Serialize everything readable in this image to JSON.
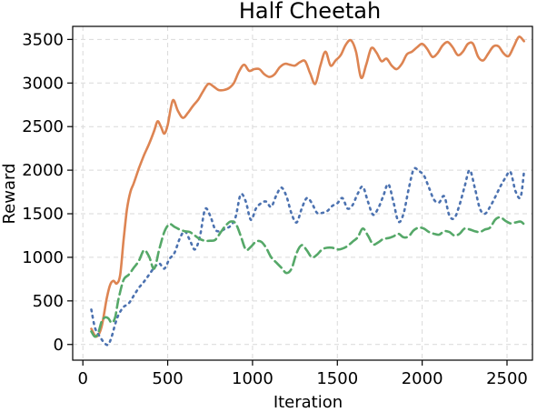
{
  "chart_data": {
    "type": "line",
    "title": "Half Cheetah",
    "xlabel": "Iteration",
    "ylabel": "Reward",
    "xlim": [
      -60,
      2650
    ],
    "ylim": [
      -180,
      3650
    ],
    "xticks": [
      0,
      500,
      1000,
      1500,
      2000,
      2500
    ],
    "yticks": [
      0,
      500,
      1000,
      1500,
      2000,
      2500,
      3000,
      3500
    ],
    "grid": true,
    "series": [
      {
        "color": "#dd8452",
        "style": "solid",
        "points": [
          [
            50,
            180
          ],
          [
            80,
            90
          ],
          [
            110,
            200
          ],
          [
            140,
            520
          ],
          [
            160,
            680
          ],
          [
            180,
            730
          ],
          [
            200,
            700
          ],
          [
            220,
            800
          ],
          [
            240,
            1200
          ],
          [
            260,
            1550
          ],
          [
            280,
            1750
          ],
          [
            300,
            1850
          ],
          [
            330,
            2020
          ],
          [
            360,
            2170
          ],
          [
            390,
            2300
          ],
          [
            420,
            2450
          ],
          [
            440,
            2560
          ],
          [
            460,
            2500
          ],
          [
            480,
            2420
          ],
          [
            500,
            2520
          ],
          [
            530,
            2800
          ],
          [
            560,
            2680
          ],
          [
            590,
            2600
          ],
          [
            620,
            2660
          ],
          [
            650,
            2740
          ],
          [
            680,
            2810
          ],
          [
            710,
            2910
          ],
          [
            740,
            2990
          ],
          [
            770,
            2960
          ],
          [
            800,
            2920
          ],
          [
            830,
            2920
          ],
          [
            860,
            2940
          ],
          [
            890,
            3000
          ],
          [
            920,
            3130
          ],
          [
            950,
            3210
          ],
          [
            980,
            3140
          ],
          [
            1010,
            3160
          ],
          [
            1040,
            3160
          ],
          [
            1070,
            3100
          ],
          [
            1100,
            3070
          ],
          [
            1130,
            3100
          ],
          [
            1160,
            3180
          ],
          [
            1190,
            3220
          ],
          [
            1220,
            3210
          ],
          [
            1250,
            3200
          ],
          [
            1280,
            3240
          ],
          [
            1310,
            3250
          ],
          [
            1340,
            3110
          ],
          [
            1370,
            2990
          ],
          [
            1400,
            3200
          ],
          [
            1430,
            3360
          ],
          [
            1460,
            3200
          ],
          [
            1490,
            3260
          ],
          [
            1520,
            3320
          ],
          [
            1550,
            3440
          ],
          [
            1580,
            3490
          ],
          [
            1610,
            3360
          ],
          [
            1640,
            3060
          ],
          [
            1670,
            3210
          ],
          [
            1700,
            3400
          ],
          [
            1730,
            3350
          ],
          [
            1760,
            3250
          ],
          [
            1790,
            3280
          ],
          [
            1820,
            3200
          ],
          [
            1850,
            3160
          ],
          [
            1880,
            3220
          ],
          [
            1910,
            3330
          ],
          [
            1940,
            3360
          ],
          [
            1970,
            3410
          ],
          [
            2000,
            3450
          ],
          [
            2030,
            3390
          ],
          [
            2060,
            3300
          ],
          [
            2090,
            3340
          ],
          [
            2120,
            3430
          ],
          [
            2150,
            3470
          ],
          [
            2180,
            3410
          ],
          [
            2210,
            3320
          ],
          [
            2240,
            3360
          ],
          [
            2270,
            3450
          ],
          [
            2300,
            3450
          ],
          [
            2330,
            3300
          ],
          [
            2360,
            3260
          ],
          [
            2390,
            3340
          ],
          [
            2420,
            3420
          ],
          [
            2450,
            3420
          ],
          [
            2480,
            3340
          ],
          [
            2510,
            3310
          ],
          [
            2540,
            3420
          ],
          [
            2570,
            3530
          ],
          [
            2600,
            3480
          ]
        ]
      },
      {
        "color": "#4c72b0",
        "style": "dotted",
        "points": [
          [
            50,
            400
          ],
          [
            70,
            200
          ],
          [
            90,
            120
          ],
          [
            110,
            60
          ],
          [
            130,
            10
          ],
          [
            150,
            0
          ],
          [
            170,
            90
          ],
          [
            190,
            230
          ],
          [
            210,
            340
          ],
          [
            240,
            430
          ],
          [
            270,
            470
          ],
          [
            300,
            560
          ],
          [
            330,
            650
          ],
          [
            360,
            720
          ],
          [
            390,
            800
          ],
          [
            420,
            880
          ],
          [
            450,
            930
          ],
          [
            480,
            870
          ],
          [
            510,
            980
          ],
          [
            540,
            1050
          ],
          [
            570,
            1210
          ],
          [
            600,
            1300
          ],
          [
            630,
            1200
          ],
          [
            660,
            1090
          ],
          [
            690,
            1240
          ],
          [
            720,
            1550
          ],
          [
            750,
            1480
          ],
          [
            780,
            1320
          ],
          [
            810,
            1300
          ],
          [
            840,
            1330
          ],
          [
            870,
            1360
          ],
          [
            900,
            1460
          ],
          [
            930,
            1720
          ],
          [
            960,
            1640
          ],
          [
            990,
            1430
          ],
          [
            1020,
            1560
          ],
          [
            1050,
            1620
          ],
          [
            1080,
            1640
          ],
          [
            1110,
            1580
          ],
          [
            1140,
            1710
          ],
          [
            1170,
            1800
          ],
          [
            1200,
            1700
          ],
          [
            1230,
            1500
          ],
          [
            1260,
            1400
          ],
          [
            1290,
            1560
          ],
          [
            1320,
            1680
          ],
          [
            1350,
            1620
          ],
          [
            1380,
            1510
          ],
          [
            1410,
            1510
          ],
          [
            1440,
            1530
          ],
          [
            1470,
            1590
          ],
          [
            1500,
            1620
          ],
          [
            1530,
            1680
          ],
          [
            1560,
            1560
          ],
          [
            1590,
            1600
          ],
          [
            1620,
            1730
          ],
          [
            1650,
            1810
          ],
          [
            1680,
            1640
          ],
          [
            1710,
            1490
          ],
          [
            1740,
            1560
          ],
          [
            1770,
            1700
          ],
          [
            1800,
            1840
          ],
          [
            1830,
            1640
          ],
          [
            1860,
            1410
          ],
          [
            1890,
            1500
          ],
          [
            1920,
            1780
          ],
          [
            1950,
            2010
          ],
          [
            1980,
            1990
          ],
          [
            2010,
            1940
          ],
          [
            2040,
            1800
          ],
          [
            2070,
            1660
          ],
          [
            2100,
            1630
          ],
          [
            2130,
            1700
          ],
          [
            2160,
            1480
          ],
          [
            2190,
            1450
          ],
          [
            2220,
            1600
          ],
          [
            2250,
            1810
          ],
          [
            2280,
            2000
          ],
          [
            2310,
            1800
          ],
          [
            2340,
            1560
          ],
          [
            2370,
            1500
          ],
          [
            2400,
            1580
          ],
          [
            2430,
            1690
          ],
          [
            2460,
            1810
          ],
          [
            2490,
            1910
          ],
          [
            2520,
            1980
          ],
          [
            2550,
            1760
          ],
          [
            2580,
            1690
          ],
          [
            2600,
            1980
          ]
        ]
      },
      {
        "color": "#55a868",
        "style": "dashed",
        "points": [
          [
            50,
            150
          ],
          [
            70,
            90
          ],
          [
            90,
            130
          ],
          [
            110,
            260
          ],
          [
            130,
            310
          ],
          [
            150,
            300
          ],
          [
            170,
            250
          ],
          [
            190,
            310
          ],
          [
            210,
            520
          ],
          [
            240,
            740
          ],
          [
            270,
            800
          ],
          [
            300,
            880
          ],
          [
            330,
            960
          ],
          [
            360,
            1080
          ],
          [
            390,
            1010
          ],
          [
            420,
            870
          ],
          [
            450,
            1090
          ],
          [
            480,
            1290
          ],
          [
            510,
            1380
          ],
          [
            540,
            1350
          ],
          [
            570,
            1320
          ],
          [
            600,
            1300
          ],
          [
            630,
            1290
          ],
          [
            660,
            1250
          ],
          [
            690,
            1210
          ],
          [
            720,
            1190
          ],
          [
            750,
            1190
          ],
          [
            780,
            1200
          ],
          [
            810,
            1280
          ],
          [
            840,
            1360
          ],
          [
            870,
            1410
          ],
          [
            900,
            1390
          ],
          [
            930,
            1250
          ],
          [
            960,
            1090
          ],
          [
            990,
            1120
          ],
          [
            1020,
            1180
          ],
          [
            1050,
            1180
          ],
          [
            1080,
            1110
          ],
          [
            1110,
            1000
          ],
          [
            1140,
            940
          ],
          [
            1170,
            880
          ],
          [
            1200,
            820
          ],
          [
            1230,
            870
          ],
          [
            1260,
            1050
          ],
          [
            1290,
            1140
          ],
          [
            1320,
            1080
          ],
          [
            1350,
            1000
          ],
          [
            1380,
            1030
          ],
          [
            1410,
            1090
          ],
          [
            1440,
            1110
          ],
          [
            1470,
            1110
          ],
          [
            1500,
            1090
          ],
          [
            1530,
            1100
          ],
          [
            1560,
            1130
          ],
          [
            1590,
            1180
          ],
          [
            1620,
            1230
          ],
          [
            1650,
            1330
          ],
          [
            1680,
            1250
          ],
          [
            1710,
            1150
          ],
          [
            1740,
            1170
          ],
          [
            1770,
            1210
          ],
          [
            1800,
            1220
          ],
          [
            1830,
            1240
          ],
          [
            1860,
            1270
          ],
          [
            1890,
            1230
          ],
          [
            1920,
            1240
          ],
          [
            1950,
            1310
          ],
          [
            1980,
            1340
          ],
          [
            2010,
            1330
          ],
          [
            2040,
            1290
          ],
          [
            2070,
            1270
          ],
          [
            2100,
            1260
          ],
          [
            2130,
            1300
          ],
          [
            2160,
            1290
          ],
          [
            2190,
            1250
          ],
          [
            2220,
            1270
          ],
          [
            2250,
            1330
          ],
          [
            2280,
            1320
          ],
          [
            2310,
            1300
          ],
          [
            2340,
            1290
          ],
          [
            2370,
            1320
          ],
          [
            2400,
            1340
          ],
          [
            2430,
            1430
          ],
          [
            2460,
            1460
          ],
          [
            2490,
            1420
          ],
          [
            2520,
            1390
          ],
          [
            2550,
            1400
          ],
          [
            2580,
            1410
          ],
          [
            2600,
            1380
          ]
        ]
      }
    ]
  }
}
